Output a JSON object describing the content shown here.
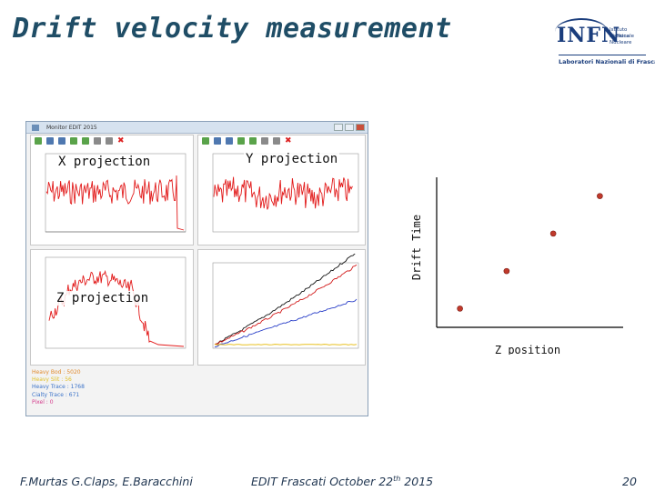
{
  "slide": {
    "title": "Drift velocity measurement",
    "page_number": "20",
    "footer_authors": "F.Murtas G.Claps, E.Baracchini",
    "footer_event": "EDIT Frascati October 22",
    "footer_event_sup": "th",
    "footer_event_year": " 2015"
  },
  "logo": {
    "mark": "INFN",
    "line1": "Istituto Nazionale",
    "line2": "di Fisica Nucleare",
    "lab": "Laboratori Nazionali di Frascati"
  },
  "window": {
    "title": "Monitor EDIT 2015",
    "labels": {
      "x_projection": "X projection",
      "y_projection": "Y projection",
      "z_projection": "Z projection"
    },
    "info_lines": [
      {
        "text": "Heavy Bod : 5020",
        "color": "#e08a2c"
      },
      {
        "text": "Heavy Slit : 56",
        "color": "#e0c02c"
      },
      {
        "text": "Heavy Trace : 1768",
        "color": "#3a72c8"
      },
      {
        "text": "Cialty Trace : 671",
        "color": "#3a72c8"
      },
      {
        "text": "Pixel : 0",
        "color": "#d43c8c"
      }
    ]
  },
  "chart_data": {
    "type": "scatter",
    "title": "",
    "xlabel": "Z position",
    "ylabel": "Drift Time",
    "series": [
      {
        "x": [
          1,
          2,
          3,
          4
        ],
        "y": [
          1,
          2,
          3,
          4
        ],
        "color": "#c0392b"
      }
    ],
    "grid": false
  }
}
